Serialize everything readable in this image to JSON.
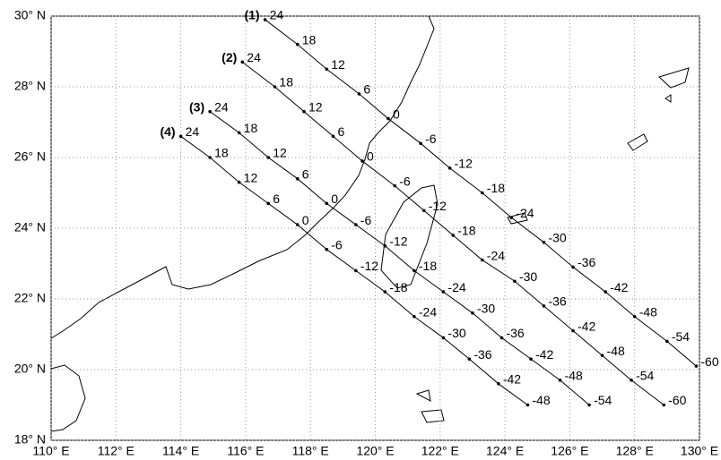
{
  "map": {
    "xlim": [
      110,
      130
    ],
    "ylim": [
      18,
      30
    ],
    "xticks": [
      {
        "value": 110,
        "label": "110° E"
      },
      {
        "value": 112,
        "label": "112° E"
      },
      {
        "value": 114,
        "label": "114° E"
      },
      {
        "value": 116,
        "label": "116° E"
      },
      {
        "value": 118,
        "label": "118° E"
      },
      {
        "value": 120,
        "label": "120° E"
      },
      {
        "value": 122,
        "label": "122° E"
      },
      {
        "value": 124,
        "label": "124° E"
      },
      {
        "value": 126,
        "label": "126° E"
      },
      {
        "value": 128,
        "label": "128° E"
      },
      {
        "value": 130,
        "label": "130° E"
      }
    ],
    "yticks": [
      {
        "value": 18,
        "label": "18° N"
      },
      {
        "value": 20,
        "label": "20° N"
      },
      {
        "value": 22,
        "label": "22° N"
      },
      {
        "value": 24,
        "label": "24° N"
      },
      {
        "value": 26,
        "label": "26° N"
      },
      {
        "value": 28,
        "label": "28° N"
      },
      {
        "value": 30,
        "label": "30° N"
      }
    ],
    "grid": true,
    "tracks": [
      {
        "name": "(1)",
        "hours": [
          24,
          18,
          12,
          6,
          0,
          -6,
          -12,
          -18,
          -24,
          -30,
          -36,
          -42,
          -48,
          -54,
          -60
        ],
        "lon": [
          116.6,
          117.6,
          118.5,
          119.5,
          120.4,
          121.4,
          122.3,
          123.3,
          124.2,
          125.2,
          126.1,
          127.1,
          128.0,
          129.0,
          129.9
        ],
        "lat": [
          29.9,
          29.2,
          28.5,
          27.8,
          27.1,
          26.4,
          25.7,
          25.0,
          24.3,
          23.6,
          22.9,
          22.2,
          21.5,
          20.8,
          20.1
        ]
      },
      {
        "name": "(2)",
        "hours": [
          24,
          18,
          12,
          6,
          0,
          -6,
          -12,
          -18,
          -24,
          -30,
          -36,
          -42,
          -48,
          -54,
          -60
        ],
        "lon": [
          115.9,
          116.9,
          117.8,
          118.7,
          119.6,
          120.6,
          121.5,
          122.4,
          123.3,
          124.3,
          125.2,
          126.1,
          127.0,
          127.9,
          128.9
        ],
        "lat": [
          28.7,
          28.0,
          27.3,
          26.6,
          25.9,
          25.2,
          24.5,
          23.8,
          23.1,
          22.5,
          21.8,
          21.1,
          20.4,
          19.7,
          19.0
        ]
      },
      {
        "name": "(3)",
        "hours": [
          24,
          18,
          12,
          6,
          0,
          -6,
          -12,
          -18,
          -24,
          -30,
          -36,
          -42,
          -48,
          -54
        ],
        "lon": [
          114.9,
          115.8,
          116.7,
          117.6,
          118.5,
          119.4,
          120.3,
          121.2,
          122.1,
          123.0,
          123.9,
          124.8,
          125.7,
          126.6
        ],
        "lat": [
          27.3,
          26.7,
          26.0,
          25.4,
          24.7,
          24.1,
          23.5,
          22.8,
          22.2,
          21.6,
          20.9,
          20.3,
          19.7,
          19.0
        ]
      },
      {
        "name": "(4)",
        "hours": [
          24,
          18,
          12,
          6,
          0,
          -6,
          -12,
          -18,
          -24,
          -30,
          -36,
          -42,
          -48
        ],
        "lon": [
          114.0,
          114.9,
          115.8,
          116.7,
          117.6,
          118.5,
          119.4,
          120.3,
          121.2,
          122.1,
          122.9,
          123.8,
          124.7
        ],
        "lat": [
          26.6,
          26.0,
          25.3,
          24.7,
          24.1,
          23.4,
          22.8,
          22.2,
          21.5,
          20.9,
          20.3,
          19.6,
          19.0
        ]
      }
    ]
  }
}
